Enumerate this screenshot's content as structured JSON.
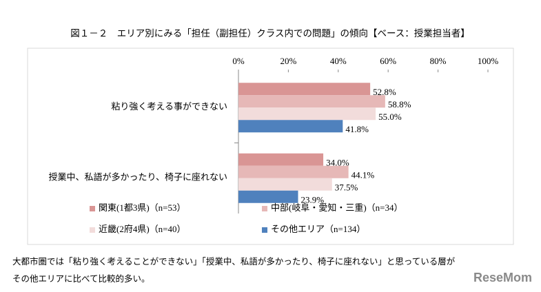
{
  "chart_data": {
    "type": "hbar",
    "title": "図１－２　エリア別にみる「担任（副担任）クラス内での問題」の傾向【ベース：授業担当者】",
    "categories": [
      "粘り強く考える事ができない",
      "授業中、私語が多かったり、椅子に座れない"
    ],
    "series": [
      {
        "name": "関東(1都3県)（n=53）",
        "color": "#d99594",
        "values": [
          52.8,
          34
        ],
        "value_labels": [
          "52.8%",
          "34.0%"
        ]
      },
      {
        "name": "中部(岐阜・愛知・三重)（n=34）",
        "color": "#e6b8b7",
        "values": [
          58.8,
          44.1
        ],
        "value_labels": [
          "58.8%",
          "44.1%"
        ]
      },
      {
        "name": "近畿(2府4県)（n=40）",
        "color": "#f2dcdb",
        "values": [
          55,
          37.5
        ],
        "value_labels": [
          "55.0%",
          "37.5%"
        ]
      },
      {
        "name": "その他エリア（n=134）",
        "color": "#4f81bd",
        "values": [
          41.8,
          23.9
        ],
        "value_labels": [
          "41.8%",
          "23.9%"
        ]
      }
    ],
    "xlim": [
      0,
      100
    ],
    "xticks": [
      {
        "value": 0,
        "label": "0%"
      },
      {
        "value": 20,
        "label": "20%"
      },
      {
        "value": 40,
        "label": "40%"
      },
      {
        "value": 60,
        "label": "60%"
      },
      {
        "value": 80,
        "label": "80%"
      },
      {
        "value": 100,
        "label": "100%"
      }
    ]
  },
  "note": [
    "大都市圏では「粘り強く考えることができない」「授業中、私語が多かったり、椅子に座れない」と思っている層が",
    "その他エリアに比べて比較的多い。"
  ],
  "logo": "ReseMom"
}
